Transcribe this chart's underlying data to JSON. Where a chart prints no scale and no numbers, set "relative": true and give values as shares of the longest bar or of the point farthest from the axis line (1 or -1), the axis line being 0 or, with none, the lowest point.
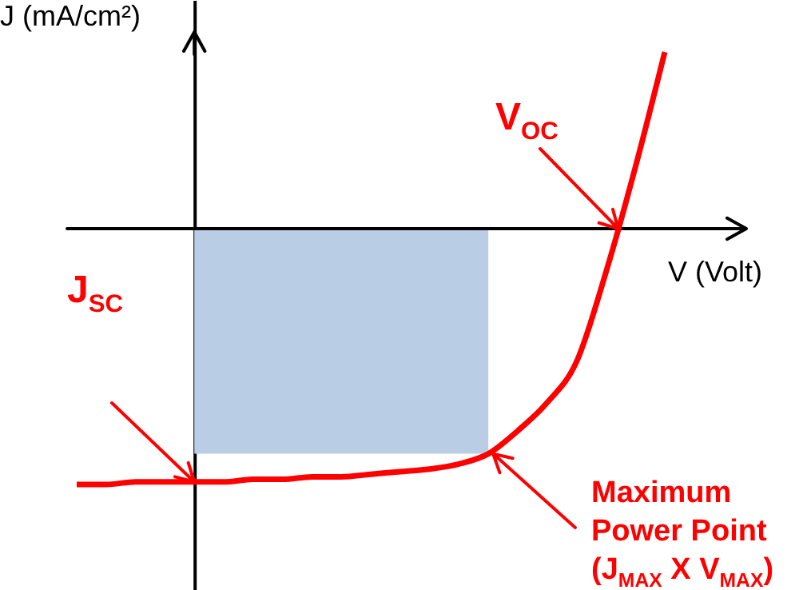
{
  "chart_data": {
    "type": "line",
    "xlabel": "V (Volt)",
    "ylabel": "J (mA/cm²)",
    "relative": true,
    "categories": [
      null,
      null,
      null,
      null,
      null,
      null,
      null,
      null,
      null,
      null,
      null,
      null,
      null,
      null,
      null,
      null,
      null,
      null,
      null,
      null,
      null
    ],
    "series": [
      {
        "color": "#ff0000",
        "values": [
          -1.0,
          -1.0,
          -0.99,
          -0.99,
          -0.99,
          -0.99,
          -0.98,
          -0.98,
          -0.97,
          -0.97,
          -0.96,
          -0.95,
          -0.94,
          -0.92,
          -0.88,
          -0.79,
          -0.68,
          -0.52,
          -0.17,
          0.24,
          0.69
        ]
      }
    ],
    "annotations": [
      "J$_{SC}$",
      "V$_{OC}$",
      "Maximum Power Point (J$_{MAX}$ X V$_{MAX}$)"
    ]
  }
}
